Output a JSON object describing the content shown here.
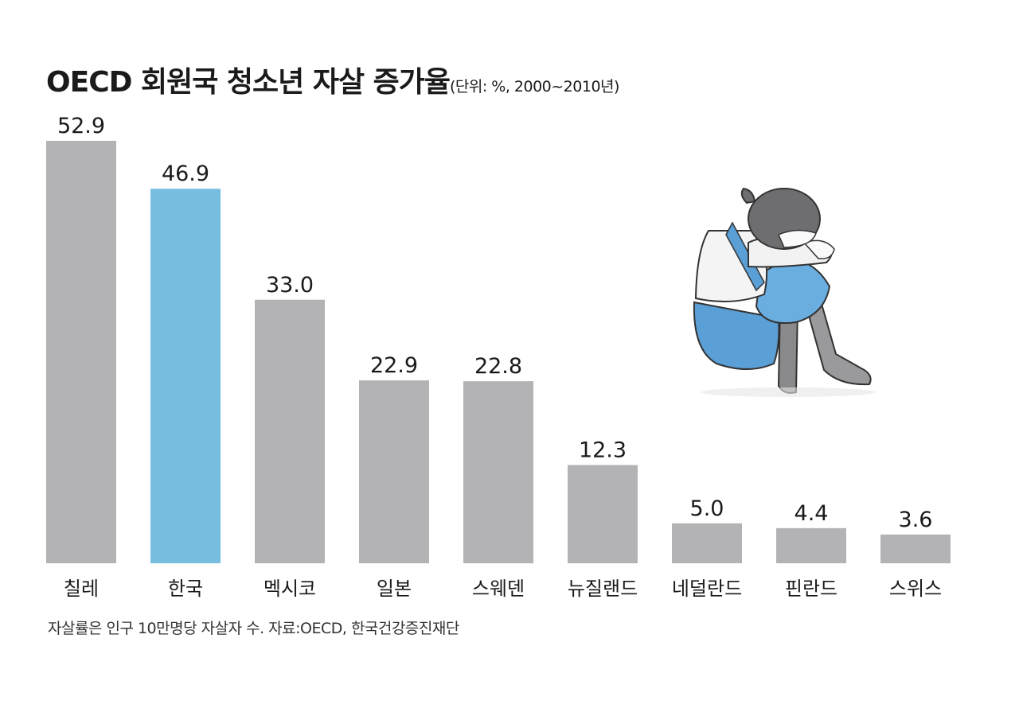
{
  "title": "OECD 회원국 청소년 자살 증가율",
  "unit_note": "(단위: %, 2000~2010년)",
  "footnote": "자살률은 인구 10만명당 자살자 수. 자료:OECD, 한국건강증진재단",
  "colors": {
    "bar_default": "#b3b3b6",
    "bar_highlight": "#77bde0",
    "text": "#1a1a1a"
  },
  "chart_data": {
    "type": "bar",
    "title": "OECD 회원국 청소년 자살 증가율",
    "categories": [
      "칠레",
      "한국",
      "멕시코",
      "일본",
      "스웨덴",
      "뉴질랜드",
      "네덜란드",
      "핀란드",
      "스위스"
    ],
    "values": [
      52.9,
      46.9,
      33.0,
      22.9,
      22.8,
      12.3,
      5.0,
      4.4,
      3.6
    ],
    "value_labels": [
      "52.9",
      "46.9",
      "33.0",
      "22.9",
      "22.8",
      "12.3",
      "5.0",
      "4.4",
      "3.6"
    ],
    "highlight": "한국",
    "xlabel": "",
    "ylabel": "",
    "ylim": [
      0,
      52.9
    ],
    "grid": false,
    "legend": "none"
  }
}
